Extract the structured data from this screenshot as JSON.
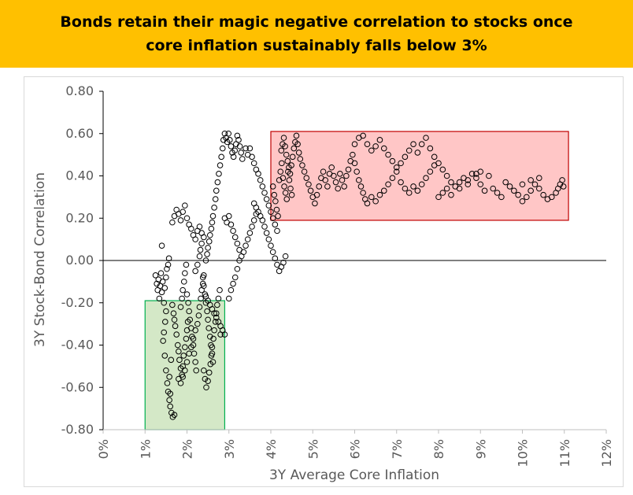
{
  "banner": {
    "line1": "Bonds retain their magic negative correlation to stocks once",
    "line2": "core inflation sustainably falls below 3%"
  },
  "colors": {
    "banner_bg": "#ffc000",
    "red_box_fill": "#ffb3b3",
    "red_box_stroke": "#c00000",
    "green_box_fill": "#c6e0b4",
    "green_box_stroke": "#00b050",
    "marker": "#000000"
  },
  "chart_data": {
    "type": "scatter",
    "title": "Bonds retain their magic negative correlation to stocks once core inflation sustainably falls below 3%",
    "xlabel": "3Y Average Core Inflation",
    "ylabel": "3Y Stock-Bond Correlation",
    "xlim": [
      0,
      0.12
    ],
    "ylim": [
      -0.8,
      0.8
    ],
    "x_ticks": [
      0,
      0.01,
      0.02,
      0.03,
      0.04,
      0.05,
      0.06,
      0.07,
      0.08,
      0.09,
      0.1,
      0.11,
      0.12
    ],
    "x_tick_labels": [
      "0%",
      "1%",
      "2%",
      "3%",
      "4%",
      "5%",
      "6%",
      "7%",
      "8%",
      "9%",
      "10%",
      "11%",
      "12%"
    ],
    "y_ticks": [
      -0.8,
      -0.6,
      -0.4,
      -0.2,
      0,
      0.2,
      0.4,
      0.6,
      0.8
    ],
    "y_tick_labels": [
      "-0.80",
      "-0.60",
      "-0.40",
      "-0.20",
      "0.00",
      "0.20",
      "0.40",
      "0.60",
      "0.80"
    ],
    "grid": false,
    "marker": "open-circle",
    "highlight_regions": [
      {
        "color": "red",
        "x": [
          0.04,
          0.111
        ],
        "y": [
          0.19,
          0.61
        ]
      },
      {
        "color": "green",
        "x": [
          0.01,
          0.029
        ],
        "y": [
          -0.8,
          -0.19
        ]
      }
    ],
    "points": [
      [
        0.0125,
        -0.07
      ],
      [
        0.0128,
        -0.11
      ],
      [
        0.013,
        -0.14
      ],
      [
        0.0132,
        -0.09
      ],
      [
        0.0134,
        -0.18
      ],
      [
        0.0136,
        -0.12
      ],
      [
        0.0138,
        -0.06
      ],
      [
        0.014,
        -0.15
      ],
      [
        0.0142,
        -0.1
      ],
      [
        0.0145,
        -0.2
      ],
      [
        0.0147,
        -0.13
      ],
      [
        0.015,
        -0.08
      ],
      [
        0.0152,
        -0.04
      ],
      [
        0.0155,
        -0.02
      ],
      [
        0.0157,
        0.01
      ],
      [
        0.014,
        0.07
      ],
      [
        0.015,
        -0.24
      ],
      [
        0.0148,
        -0.29
      ],
      [
        0.0145,
        -0.34
      ],
      [
        0.0143,
        -0.38
      ],
      [
        0.0147,
        -0.45
      ],
      [
        0.015,
        -0.52
      ],
      [
        0.0153,
        -0.58
      ],
      [
        0.0155,
        -0.62
      ],
      [
        0.0158,
        -0.66
      ],
      [
        0.016,
        -0.69
      ],
      [
        0.0163,
        -0.72
      ],
      [
        0.0166,
        -0.74
      ],
      [
        0.017,
        -0.73
      ],
      [
        0.016,
        -0.63
      ],
      [
        0.0158,
        -0.55
      ],
      [
        0.0162,
        -0.47
      ],
      [
        0.0165,
        -0.21
      ],
      [
        0.0168,
        -0.25
      ],
      [
        0.017,
        -0.28
      ],
      [
        0.0172,
        -0.31
      ],
      [
        0.0175,
        -0.35
      ],
      [
        0.0178,
        -0.4
      ],
      [
        0.018,
        -0.43
      ],
      [
        0.0182,
        -0.47
      ],
      [
        0.0185,
        -0.51
      ],
      [
        0.0188,
        -0.54
      ],
      [
        0.019,
        -0.5
      ],
      [
        0.0192,
        -0.45
      ],
      [
        0.0195,
        -0.41
      ],
      [
        0.0198,
        -0.37
      ],
      [
        0.02,
        -0.33
      ],
      [
        0.0202,
        -0.29
      ],
      [
        0.0185,
        -0.22
      ],
      [
        0.0188,
        -0.18
      ],
      [
        0.019,
        -0.14
      ],
      [
        0.0193,
        -0.1
      ],
      [
        0.0195,
        -0.06
      ],
      [
        0.0198,
        -0.02
      ],
      [
        0.02,
        -0.16
      ],
      [
        0.0203,
        -0.2
      ],
      [
        0.0205,
        -0.24
      ],
      [
        0.0207,
        -0.28
      ],
      [
        0.021,
        -0.32
      ],
      [
        0.0212,
        -0.36
      ],
      [
        0.0215,
        -0.4
      ],
      [
        0.0217,
        -0.44
      ],
      [
        0.022,
        -0.48
      ],
      [
        0.0222,
        -0.52
      ],
      [
        0.018,
        -0.56
      ],
      [
        0.0185,
        -0.58
      ],
      [
        0.019,
        -0.55
      ],
      [
        0.0195,
        -0.52
      ],
      [
        0.02,
        -0.48
      ],
      [
        0.0205,
        -0.44
      ],
      [
        0.021,
        -0.41
      ],
      [
        0.0215,
        -0.37
      ],
      [
        0.022,
        -0.33
      ],
      [
        0.0225,
        -0.3
      ],
      [
        0.0228,
        -0.26
      ],
      [
        0.023,
        -0.22
      ],
      [
        0.0233,
        -0.18
      ],
      [
        0.0235,
        -0.14
      ],
      [
        0.0238,
        -0.11
      ],
      [
        0.024,
        -0.07
      ],
      [
        0.0165,
        0.18
      ],
      [
        0.017,
        0.21
      ],
      [
        0.0175,
        0.24
      ],
      [
        0.018,
        0.22
      ],
      [
        0.0185,
        0.19
      ],
      [
        0.019,
        0.23
      ],
      [
        0.0195,
        0.26
      ],
      [
        0.02,
        0.2
      ],
      [
        0.0205,
        0.17
      ],
      [
        0.021,
        0.15
      ],
      [
        0.0215,
        0.12
      ],
      [
        0.022,
        0.1
      ],
      [
        0.0225,
        0.14
      ],
      [
        0.023,
        0.16
      ],
      [
        0.0235,
        0.13
      ],
      [
        0.024,
        0.11
      ],
      [
        0.022,
        -0.05
      ],
      [
        0.0225,
        -0.02
      ],
      [
        0.023,
        0.02
      ],
      [
        0.0232,
        0.05
      ],
      [
        0.0235,
        0.08
      ],
      [
        0.0238,
        -0.08
      ],
      [
        0.024,
        -0.12
      ],
      [
        0.0243,
        -0.16
      ],
      [
        0.0245,
        -0.2
      ],
      [
        0.0248,
        -0.24
      ],
      [
        0.025,
        -0.28
      ],
      [
        0.0252,
        -0.32
      ],
      [
        0.0255,
        -0.36
      ],
      [
        0.0257,
        -0.4
      ],
      [
        0.026,
        -0.44
      ],
      [
        0.0262,
        -0.48
      ],
      [
        0.024,
        -0.52
      ],
      [
        0.0243,
        -0.56
      ],
      [
        0.0246,
        -0.6
      ],
      [
        0.025,
        -0.57
      ],
      [
        0.0253,
        -0.53
      ],
      [
        0.0256,
        -0.49
      ],
      [
        0.0258,
        -0.45
      ],
      [
        0.026,
        -0.41
      ],
      [
        0.0263,
        -0.37
      ],
      [
        0.0265,
        -0.33
      ],
      [
        0.0268,
        -0.29
      ],
      [
        0.027,
        -0.25
      ],
      [
        0.0272,
        -0.21
      ],
      [
        0.0275,
        -0.18
      ],
      [
        0.0278,
        -0.14
      ],
      [
        0.028,
        -0.35
      ],
      [
        0.0245,
        0.0
      ],
      [
        0.0248,
        0.03
      ],
      [
        0.025,
        0.06
      ],
      [
        0.0253,
        0.09
      ],
      [
        0.0255,
        0.12
      ],
      [
        0.0258,
        0.15
      ],
      [
        0.026,
        0.18
      ],
      [
        0.0262,
        0.21
      ],
      [
        0.0265,
        0.25
      ],
      [
        0.0268,
        0.29
      ],
      [
        0.027,
        0.33
      ],
      [
        0.0273,
        0.37
      ],
      [
        0.0276,
        0.41
      ],
      [
        0.0279,
        0.45
      ],
      [
        0.0282,
        0.49
      ],
      [
        0.0285,
        0.53
      ],
      [
        0.0287,
        0.57
      ],
      [
        0.029,
        0.6
      ],
      [
        0.0293,
        0.58
      ],
      [
        0.0296,
        0.56
      ],
      [
        0.0299,
        0.6
      ],
      [
        0.0302,
        0.57
      ],
      [
        0.0305,
        0.54
      ],
      [
        0.0308,
        0.51
      ],
      [
        0.0311,
        0.49
      ],
      [
        0.0314,
        0.52
      ],
      [
        0.0317,
        0.55
      ],
      [
        0.032,
        0.59
      ],
      [
        0.0323,
        0.57
      ],
      [
        0.0326,
        0.54
      ],
      [
        0.0329,
        0.51
      ],
      [
        0.0332,
        0.48
      ],
      [
        0.029,
        0.2
      ],
      [
        0.0295,
        0.18
      ],
      [
        0.03,
        0.21
      ],
      [
        0.0305,
        0.17
      ],
      [
        0.031,
        0.14
      ],
      [
        0.0315,
        0.11
      ],
      [
        0.032,
        0.08
      ],
      [
        0.0325,
        0.05
      ],
      [
        0.033,
        0.02
      ],
      [
        0.0335,
        0.04
      ],
      [
        0.034,
        0.07
      ],
      [
        0.0345,
        0.1
      ],
      [
        0.035,
        0.13
      ],
      [
        0.0355,
        0.16
      ],
      [
        0.036,
        0.19
      ],
      [
        0.0365,
        0.22
      ],
      [
        0.03,
        -0.18
      ],
      [
        0.0305,
        -0.14
      ],
      [
        0.031,
        -0.11
      ],
      [
        0.0315,
        -0.08
      ],
      [
        0.032,
        -0.04
      ],
      [
        0.0325,
        0.0
      ],
      [
        0.029,
        -0.35
      ],
      [
        0.0285,
        -0.33
      ],
      [
        0.028,
        -0.31
      ],
      [
        0.0275,
        -0.29
      ],
      [
        0.027,
        -0.27
      ],
      [
        0.0265,
        -0.25
      ],
      [
        0.026,
        -0.23
      ],
      [
        0.0255,
        -0.21
      ],
      [
        0.025,
        -0.19
      ],
      [
        0.0245,
        -0.17
      ],
      [
        0.034,
        0.53
      ],
      [
        0.0345,
        0.5
      ],
      [
        0.035,
        0.53
      ],
      [
        0.0355,
        0.49
      ],
      [
        0.036,
        0.46
      ],
      [
        0.0365,
        0.43
      ],
      [
        0.037,
        0.41
      ],
      [
        0.0375,
        0.38
      ],
      [
        0.038,
        0.35
      ],
      [
        0.0385,
        0.32
      ],
      [
        0.039,
        0.29
      ],
      [
        0.0395,
        0.26
      ],
      [
        0.04,
        0.23
      ],
      [
        0.0405,
        0.2
      ],
      [
        0.041,
        0.17
      ],
      [
        0.0415,
        0.14
      ],
      [
        0.036,
        0.27
      ],
      [
        0.0365,
        0.25
      ],
      [
        0.037,
        0.23
      ],
      [
        0.0375,
        0.21
      ],
      [
        0.038,
        0.19
      ],
      [
        0.0385,
        0.16
      ],
      [
        0.039,
        0.13
      ],
      [
        0.0395,
        0.1
      ],
      [
        0.04,
        0.07
      ],
      [
        0.0405,
        0.04
      ],
      [
        0.041,
        0.01
      ],
      [
        0.0415,
        -0.02
      ],
      [
        0.042,
        -0.05
      ],
      [
        0.0425,
        -0.03
      ],
      [
        0.043,
        -0.01
      ],
      [
        0.0435,
        0.02
      ],
      [
        0.0425,
        0.52
      ],
      [
        0.0428,
        0.55
      ],
      [
        0.0431,
        0.58
      ],
      [
        0.0434,
        0.54
      ],
      [
        0.0437,
        0.5
      ],
      [
        0.044,
        0.47
      ],
      [
        0.0443,
        0.44
      ],
      [
        0.0446,
        0.41
      ],
      [
        0.0449,
        0.45
      ],
      [
        0.0452,
        0.49
      ],
      [
        0.0455,
        0.53
      ],
      [
        0.0458,
        0.56
      ],
      [
        0.0461,
        0.59
      ],
      [
        0.0464,
        0.55
      ],
      [
        0.0467,
        0.51
      ],
      [
        0.047,
        0.48
      ],
      [
        0.0405,
        0.35
      ],
      [
        0.0408,
        0.31
      ],
      [
        0.0411,
        0.28
      ],
      [
        0.0414,
        0.24
      ],
      [
        0.0417,
        0.21
      ],
      [
        0.042,
        0.38
      ],
      [
        0.0423,
        0.42
      ],
      [
        0.0426,
        0.46
      ],
      [
        0.0429,
        0.39
      ],
      [
        0.0432,
        0.35
      ],
      [
        0.0435,
        0.32
      ],
      [
        0.0438,
        0.29
      ],
      [
        0.0441,
        0.42
      ],
      [
        0.0444,
        0.38
      ],
      [
        0.0447,
        0.34
      ],
      [
        0.045,
        0.31
      ],
      [
        0.0475,
        0.45
      ],
      [
        0.048,
        0.42
      ],
      [
        0.0485,
        0.39
      ],
      [
        0.049,
        0.36
      ],
      [
        0.0495,
        0.33
      ],
      [
        0.05,
        0.3
      ],
      [
        0.0505,
        0.27
      ],
      [
        0.051,
        0.31
      ],
      [
        0.0515,
        0.35
      ],
      [
        0.052,
        0.39
      ],
      [
        0.0525,
        0.42
      ],
      [
        0.053,
        0.38
      ],
      [
        0.0535,
        0.35
      ],
      [
        0.054,
        0.41
      ],
      [
        0.0545,
        0.44
      ],
      [
        0.055,
        0.4
      ],
      [
        0.0555,
        0.37
      ],
      [
        0.056,
        0.34
      ],
      [
        0.0565,
        0.41
      ],
      [
        0.057,
        0.38
      ],
      [
        0.0575,
        0.35
      ],
      [
        0.058,
        0.4
      ],
      [
        0.0585,
        0.43
      ],
      [
        0.059,
        0.47
      ],
      [
        0.0595,
        0.5
      ],
      [
        0.06,
        0.46
      ],
      [
        0.0605,
        0.42
      ],
      [
        0.061,
        0.38
      ],
      [
        0.0615,
        0.35
      ],
      [
        0.062,
        0.32
      ],
      [
        0.0625,
        0.29
      ],
      [
        0.063,
        0.27
      ],
      [
        0.06,
        0.55
      ],
      [
        0.061,
        0.58
      ],
      [
        0.062,
        0.59
      ],
      [
        0.063,
        0.55
      ],
      [
        0.064,
        0.52
      ],
      [
        0.065,
        0.54
      ],
      [
        0.066,
        0.57
      ],
      [
        0.067,
        0.53
      ],
      [
        0.068,
        0.5
      ],
      [
        0.069,
        0.47
      ],
      [
        0.07,
        0.44
      ],
      [
        0.071,
        0.46
      ],
      [
        0.072,
        0.49
      ],
      [
        0.073,
        0.52
      ],
      [
        0.074,
        0.55
      ],
      [
        0.075,
        0.51
      ],
      [
        0.064,
        0.3
      ],
      [
        0.065,
        0.28
      ],
      [
        0.066,
        0.31
      ],
      [
        0.067,
        0.33
      ],
      [
        0.068,
        0.36
      ],
      [
        0.069,
        0.39
      ],
      [
        0.07,
        0.42
      ],
      [
        0.071,
        0.37
      ],
      [
        0.072,
        0.34
      ],
      [
        0.073,
        0.32
      ],
      [
        0.074,
        0.35
      ],
      [
        0.075,
        0.33
      ],
      [
        0.076,
        0.36
      ],
      [
        0.077,
        0.39
      ],
      [
        0.078,
        0.42
      ],
      [
        0.079,
        0.45
      ],
      [
        0.076,
        0.55
      ],
      [
        0.077,
        0.58
      ],
      [
        0.078,
        0.53
      ],
      [
        0.079,
        0.49
      ],
      [
        0.08,
        0.46
      ],
      [
        0.081,
        0.43
      ],
      [
        0.082,
        0.4
      ],
      [
        0.083,
        0.37
      ],
      [
        0.084,
        0.35
      ],
      [
        0.085,
        0.37
      ],
      [
        0.086,
        0.39
      ],
      [
        0.087,
        0.36
      ],
      [
        0.088,
        0.41
      ],
      [
        0.089,
        0.39
      ],
      [
        0.09,
        0.36
      ],
      [
        0.091,
        0.33
      ],
      [
        0.08,
        0.3
      ],
      [
        0.081,
        0.32
      ],
      [
        0.082,
        0.34
      ],
      [
        0.083,
        0.31
      ],
      [
        0.085,
        0.34
      ],
      [
        0.087,
        0.38
      ],
      [
        0.089,
        0.41
      ],
      [
        0.09,
        0.42
      ],
      [
        0.092,
        0.4
      ],
      [
        0.093,
        0.34
      ],
      [
        0.094,
        0.32
      ],
      [
        0.095,
        0.3
      ],
      [
        0.096,
        0.37
      ],
      [
        0.097,
        0.35
      ],
      [
        0.098,
        0.33
      ],
      [
        0.099,
        0.31
      ],
      [
        0.1,
        0.28
      ],
      [
        0.101,
        0.3
      ],
      [
        0.102,
        0.33
      ],
      [
        0.103,
        0.36
      ],
      [
        0.104,
        0.34
      ],
      [
        0.105,
        0.31
      ],
      [
        0.106,
        0.29
      ],
      [
        0.107,
        0.3
      ],
      [
        0.108,
        0.32
      ],
      [
        0.1085,
        0.34
      ],
      [
        0.109,
        0.36
      ],
      [
        0.1095,
        0.38
      ],
      [
        0.1098,
        0.35
      ],
      [
        0.1,
        0.36
      ],
      [
        0.102,
        0.38
      ],
      [
        0.104,
        0.39
      ]
    ]
  }
}
